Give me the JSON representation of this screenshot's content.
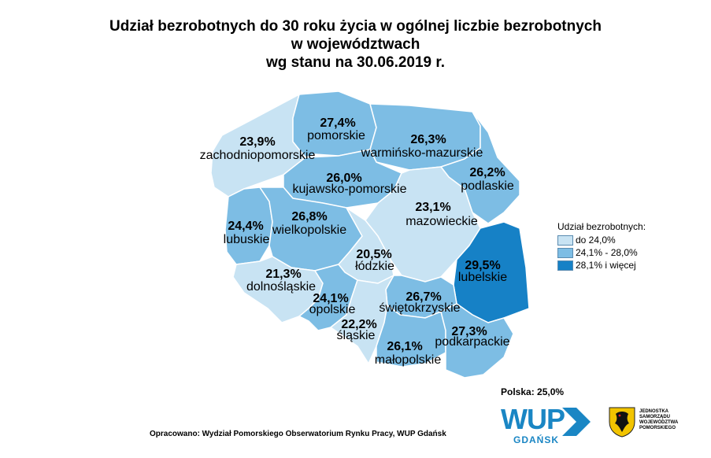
{
  "title": {
    "line1": "Udział bezrobotnych do 30 roku życia w ogólnej liczbie bezrobotnych",
    "line2": "w województwach",
    "line3": "wg stanu na 30.06.2019 r."
  },
  "map_data": {
    "regions": [
      {
        "id": "zachodniopomorskie",
        "name": "zachodniopomorskie",
        "value": "23,9%",
        "class": "low"
      },
      {
        "id": "pomorskie",
        "name": "pomorskie",
        "value": "27,4%",
        "class": "mid"
      },
      {
        "id": "warminsko-mazurskie",
        "name": "warmińsko-mazurskie",
        "value": "26,3%",
        "class": "mid"
      },
      {
        "id": "podlaskie",
        "name": "podlaskie",
        "value": "26,2%",
        "class": "mid"
      },
      {
        "id": "kujawsko-pomorskie",
        "name": "kujawsko-pomorskie",
        "value": "26,0%",
        "class": "mid"
      },
      {
        "id": "lubuskie",
        "name": "lubuskie",
        "value": "24,4%",
        "class": "mid"
      },
      {
        "id": "wielkopolskie",
        "name": "wielkopolskie",
        "value": "26,8%",
        "class": "mid"
      },
      {
        "id": "mazowieckie",
        "name": "mazowieckie",
        "value": "23,1%",
        "class": "low"
      },
      {
        "id": "lodzkie",
        "name": "łódzkie",
        "value": "20,5%",
        "class": "low"
      },
      {
        "id": "lubelskie",
        "name": "lubelskie",
        "value": "29,5%",
        "class": "high"
      },
      {
        "id": "dolnoslaskie",
        "name": "dolnośląskie",
        "value": "21,3%",
        "class": "low"
      },
      {
        "id": "opolskie",
        "name": "opolskie",
        "value": "24,1%",
        "class": "mid"
      },
      {
        "id": "swietokrzyskie",
        "name": "świętokrzyskie",
        "value": "26,7%",
        "class": "mid"
      },
      {
        "id": "slaskie",
        "name": "śląskie",
        "value": "22,2%",
        "class": "low"
      },
      {
        "id": "malopolskie",
        "name": "małopolskie",
        "value": "26,1%",
        "class": "mid"
      },
      {
        "id": "podkarpackie",
        "name": "podkarpackie",
        "value": "27,3%",
        "class": "mid"
      }
    ]
  },
  "colors": {
    "low": "#c8e3f3",
    "mid": "#7dbde4",
    "high": "#1681c6",
    "border": "#ffffff",
    "brand": "#1a86c4"
  },
  "legend": {
    "title": "Udział bezrobotnych:",
    "items": [
      {
        "label": "do 24,0%",
        "class": "low"
      },
      {
        "label": "24,1% - 28,0%",
        "class": "mid"
      },
      {
        "label": "28,1% i więcej",
        "class": "high"
      }
    ]
  },
  "total": "Polska: 25,0%",
  "source": "Opracowano: Wydział Pomorskiego Obserwatorium Rynku Pracy, WUP Gdańsk",
  "logo": {
    "wup": "WUP",
    "city": "GDAŃSK"
  },
  "institution": {
    "line1": "JEDNOSTKA",
    "line2": "SAMORZĄDU",
    "line3": "WOJEWÓDZTWA",
    "line4": "POMORSKIEGO"
  }
}
